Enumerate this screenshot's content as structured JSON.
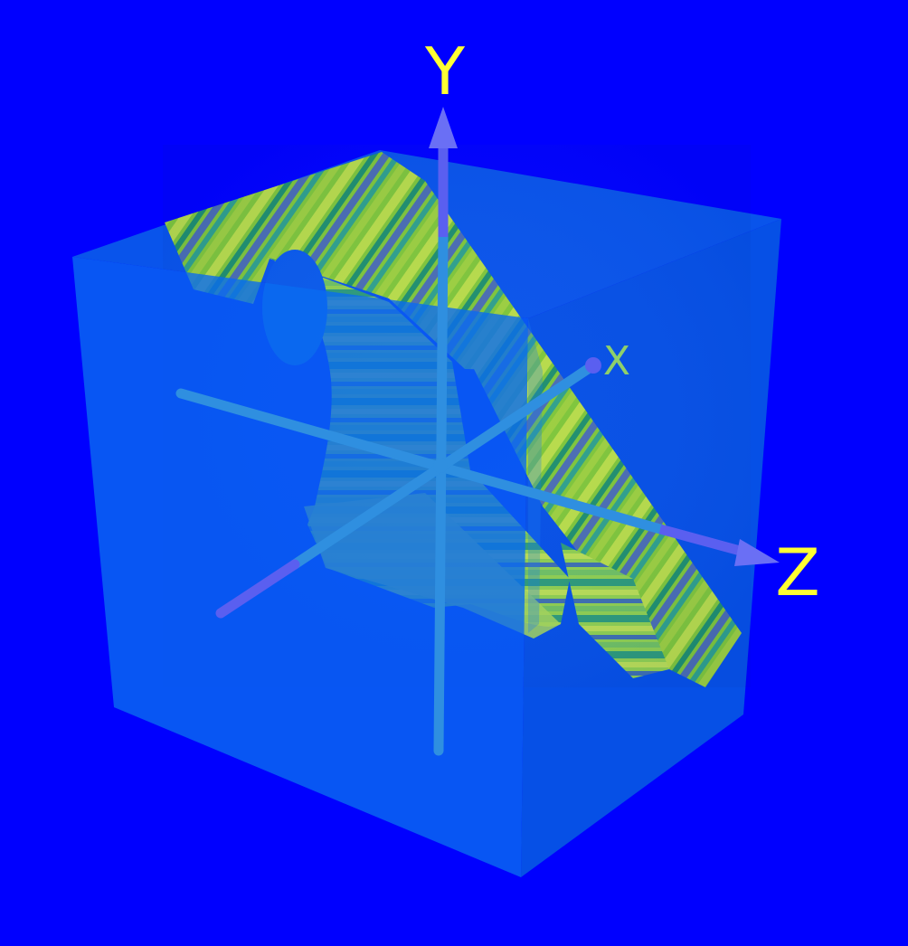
{
  "background_color": "#0000ff",
  "cube": {
    "face_color_front": "#0a6cf0",
    "face_color_side": "#0650e6",
    "face_color_top": "#0a5aeb"
  },
  "section_surface": {
    "stripe_colors": [
      "#7fc63a",
      "#b8dc4a",
      "#1f8f6e",
      "#4a6db3",
      "#2fa08c",
      "#9ccf3f"
    ],
    "cutout_color": "#8fd06a"
  },
  "axes": {
    "shaft_color": "#2f8fe0",
    "arrow_color": "#5a5ff0",
    "x": {
      "label": "X",
      "label_color": "#8fd06a"
    },
    "y": {
      "label": "Y",
      "label_color": "#ffff33"
    },
    "z": {
      "label": "Z",
      "label_color": "#ffff33"
    }
  }
}
